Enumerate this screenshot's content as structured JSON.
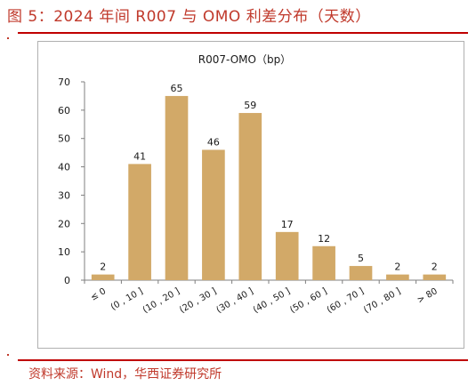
{
  "figure": {
    "title": "图 5：2024 年间 R007 与 OMO 利差分布（天数）",
    "source": "资料来源：Wind，华西证券研究所"
  },
  "colors": {
    "bar": "#d2a968",
    "accent": "#c00000",
    "axis": "#7f7f7f",
    "text": "#1a1a1a"
  },
  "chart_data": {
    "type": "bar",
    "title": "R007-OMO（bp）",
    "categories": [
      "≤ 0",
      "(0 , 10 ]",
      "(10 , 20 ]",
      "(20 , 30 ]",
      "(30 , 40 ]",
      "(40 , 50 ]",
      "(50 , 60 ]",
      "(60 , 70 ]",
      "(70 , 80 ]",
      "> 80"
    ],
    "values": [
      2,
      41,
      65,
      46,
      59,
      17,
      12,
      5,
      2,
      2
    ],
    "xlabel": "",
    "ylabel": "",
    "ylim": [
      0,
      70
    ],
    "yticks": [
      0,
      10,
      20,
      30,
      40,
      50,
      60,
      70
    ],
    "data_labels": true,
    "grid": false,
    "legend": "none"
  }
}
